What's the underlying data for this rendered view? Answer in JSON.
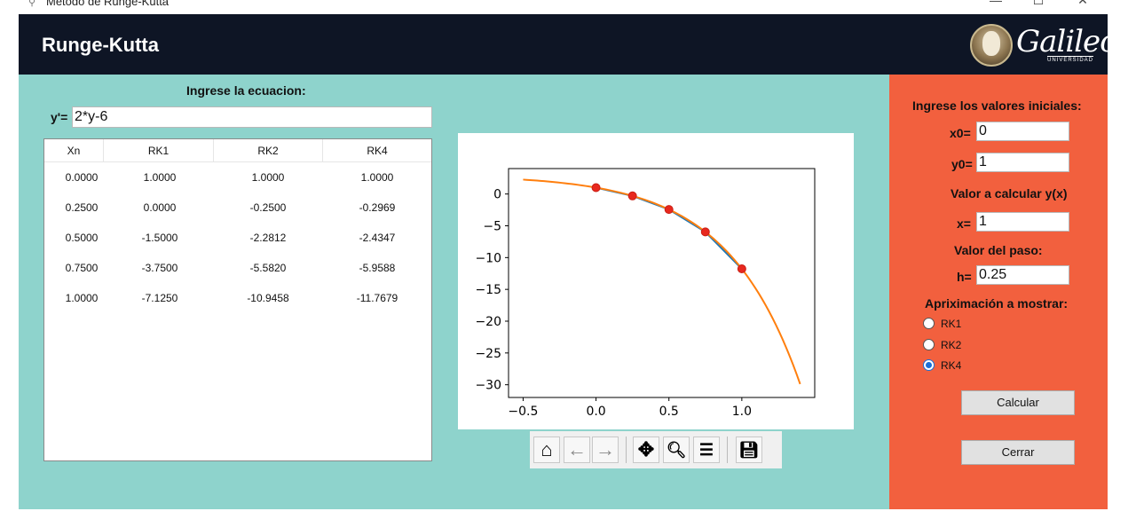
{
  "window": {
    "title": "Método de Runge-Kutta",
    "controls": {
      "minimize": "—",
      "maximize": "☐",
      "close": "✕"
    }
  },
  "header": {
    "title": "Runge-Kutta",
    "logo_text": "Galileo",
    "logo_subtext": "UNIVERSIDAD"
  },
  "equation": {
    "label": "Ingrese la ecuacion:",
    "prefix": "y'=",
    "value": "2*y-6"
  },
  "table": {
    "columns": [
      "Xn",
      "RK1",
      "RK2",
      "RK4"
    ],
    "rows": [
      [
        "0.0000",
        "1.0000",
        "1.0000",
        "1.0000"
      ],
      [
        "0.2500",
        "0.0000",
        "-0.2500",
        "-0.2969"
      ],
      [
        "0.5000",
        "-1.5000",
        "-2.2812",
        "-2.4347"
      ],
      [
        "0.7500",
        "-3.7500",
        "-5.5820",
        "-5.9588"
      ],
      [
        "1.0000",
        "-7.1250",
        "-10.9458",
        "-11.7679"
      ]
    ]
  },
  "chart_data": {
    "type": "line",
    "xlim": [
      -0.6,
      1.5
    ],
    "ylim": [
      -32,
      4
    ],
    "xticks": [
      -0.5,
      0.0,
      0.5,
      1.0
    ],
    "xtick_labels": [
      "−0.5",
      "0.0",
      "0.5",
      "1.0"
    ],
    "yticks": [
      0,
      -5,
      -10,
      -15,
      -20,
      -25,
      -30
    ],
    "ytick_labels": [
      "0",
      "−5",
      "−10",
      "−15",
      "−20",
      "−25",
      "−30"
    ],
    "series": [
      {
        "kind": "line",
        "color": "#1f77b4",
        "x": [
          0,
          0.25,
          0.5,
          0.75,
          1.0
        ],
        "y": [
          1.0,
          -0.2969,
          -2.4347,
          -5.9588,
          -11.7679
        ]
      },
      {
        "kind": "curve",
        "color": "#ff7f0e",
        "function": "3-2*exp(2x)",
        "x_range": [
          -0.5,
          1.4
        ]
      },
      {
        "kind": "points",
        "color": "#e8281e",
        "x": [
          0,
          0.25,
          0.5,
          0.75,
          1.0
        ],
        "y": [
          1.0,
          -0.2969,
          -2.4347,
          -5.9588,
          -11.7679
        ]
      }
    ],
    "grid": false
  },
  "plot_toolbar": {
    "buttons": [
      {
        "name": "home-icon",
        "glyph": "⌂"
      },
      {
        "name": "back-arrow-icon",
        "glyph": "←"
      },
      {
        "name": "forward-arrow-icon",
        "glyph": "→"
      },
      {
        "name": "pan-icon",
        "glyph": "✥"
      },
      {
        "name": "zoom-icon",
        "glyph": "🔍︎"
      },
      {
        "name": "configure-subplots-icon",
        "glyph": "☰"
      },
      {
        "name": "save-icon",
        "glyph": "💾︎"
      }
    ]
  },
  "sidebar": {
    "initial_label": "Ingrese los valores iniciales:",
    "x0_label": "x0=",
    "x0_value": "0",
    "y0_label": "y0=",
    "y0_value": "1",
    "target_label": "Valor a calcular y(x)",
    "x_label": "x=",
    "x_value": "1",
    "step_label": "Valor del paso:",
    "h_label": "h=",
    "h_value": "0.25",
    "approx_label": "Apriximación a mostrar:",
    "options": [
      "RK1",
      "RK2",
      "RK4"
    ],
    "selected_option": "RK4",
    "calc_button": "Calcular",
    "close_button": "Cerrar"
  },
  "colors": {
    "header_bg": "#0e1525",
    "main_bg": "#8ed3cc",
    "side_bg": "#f2603e"
  }
}
